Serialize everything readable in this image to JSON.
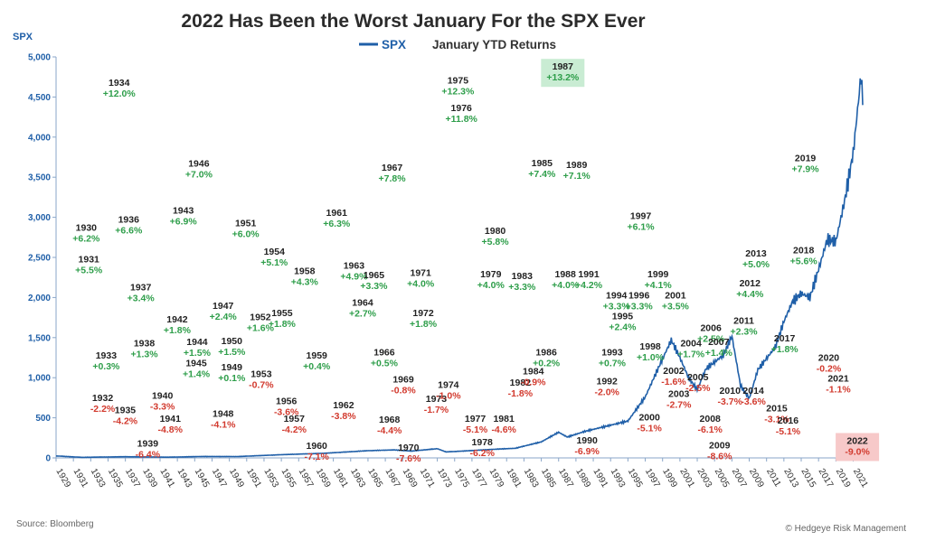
{
  "chart_data": {
    "type": "line",
    "title": "2022 Has Been the Worst January For the SPX Ever",
    "ylabel": "SPX",
    "legend": [
      {
        "name": "SPX",
        "color": "#1f5fa8",
        "kind": "line"
      },
      {
        "name": "January YTD Returns",
        "kind": "text"
      }
    ],
    "legend_position": "top-center",
    "ylim": [
      0,
      5000
    ],
    "yticks": [
      0,
      500,
      1000,
      1500,
      2000,
      2500,
      3000,
      3500,
      4000,
      4500,
      5000
    ],
    "ytick_labels": [
      "0",
      "500",
      "1,000",
      "1,500",
      "2,000",
      "2,500",
      "3,000",
      "3,500",
      "4,000",
      "4,500",
      "5,000"
    ],
    "xlim": [
      1929,
      2022.2
    ],
    "xticks": [
      "1929",
      "1931",
      "1933",
      "1935",
      "1937",
      "1939",
      "1941",
      "1943",
      "1945",
      "1947",
      "1949",
      "1951",
      "1953",
      "1955",
      "1957",
      "1959",
      "1961",
      "1963",
      "1965",
      "1967",
      "1969",
      "1971",
      "1973",
      "1975",
      "1977",
      "1979",
      "1981",
      "1983",
      "1985",
      "1987",
      "1989",
      "1991",
      "1993",
      "1995",
      "1997",
      "1999",
      "2001",
      "2003",
      "2005",
      "2007",
      "2009",
      "2011",
      "2013",
      "2015",
      "2017",
      "2019",
      "2021"
    ],
    "grid": false,
    "series": [
      {
        "name": "SPX",
        "color": "#1f5fa8",
        "x": [
          1929,
          1932,
          1937,
          1942,
          1946,
          1950,
          1955,
          1960,
          1965,
          1968,
          1970,
          1973,
          1974,
          1975,
          1980,
          1982,
          1985,
          1987,
          1988,
          1990,
          1995,
          1997,
          1998,
          2000,
          2001,
          2002,
          2003,
          2004,
          2006,
          2007,
          2008,
          2009,
          2010,
          2012,
          2013,
          2014,
          2015,
          2016,
          2017,
          2018,
          2019,
          2020,
          2021,
          2021.9,
          2022.1
        ],
        "y": [
          25,
          7,
          15,
          9,
          18,
          17,
          40,
          58,
          90,
          100,
          85,
          115,
          75,
          80,
          110,
          120,
          200,
          320,
          260,
          330,
          460,
          760,
          1000,
          1470,
          1250,
          1000,
          850,
          1110,
          1280,
          1520,
          900,
          740,
          1100,
          1380,
          1700,
          1950,
          2050,
          2000,
          2350,
          2720,
          2700,
          3200,
          3800,
          4770,
          4400
        ]
      }
    ],
    "annotations": [
      {
        "year": "1930",
        "value": "+6.2%",
        "x": 1930.6,
        "y": 2835
      },
      {
        "year": "1931",
        "value": "+5.5%",
        "x": 1930.9,
        "y": 2440
      },
      {
        "year": "1932",
        "value": "-2.2%",
        "x": 1932.5,
        "y": 710
      },
      {
        "year": "1933",
        "value": "+0.3%",
        "x": 1932.9,
        "y": 1240
      },
      {
        "year": "1934",
        "value": "+12.0%",
        "x": 1934.4,
        "y": 4640
      },
      {
        "year": "1935",
        "value": "-4.2%",
        "x": 1935.1,
        "y": 560
      },
      {
        "year": "1936",
        "value": "+6.6%",
        "x": 1935.5,
        "y": 2935
      },
      {
        "year": "1937",
        "value": "+3.4%",
        "x": 1936.9,
        "y": 2090
      },
      {
        "year": "1938",
        "value": "+1.3%",
        "x": 1937.3,
        "y": 1390
      },
      {
        "year": "1939",
        "value": "-6.4%",
        "x": 1937.7,
        "y": 140
      },
      {
        "year": "1940",
        "value": "-3.3%",
        "x": 1939.4,
        "y": 740
      },
      {
        "year": "1941",
        "value": "-4.8%",
        "x": 1940.3,
        "y": 450
      },
      {
        "year": "1942",
        "value": "+1.8%",
        "x": 1941.1,
        "y": 1690
      },
      {
        "year": "1943",
        "value": "+6.9%",
        "x": 1941.8,
        "y": 3045
      },
      {
        "year": "1944",
        "value": "+1.5%",
        "x": 1943.4,
        "y": 1410
      },
      {
        "year": "1945",
        "value": "+1.4%",
        "x": 1943.3,
        "y": 1145
      },
      {
        "year": "1946",
        "value": "+7.0%",
        "x": 1943.6,
        "y": 3630
      },
      {
        "year": "1947",
        "value": "+2.4%",
        "x": 1946.4,
        "y": 1860
      },
      {
        "year": "1948",
        "value": "-4.1%",
        "x": 1946.4,
        "y": 510
      },
      {
        "year": "1949",
        "value": "+0.1%",
        "x": 1947.4,
        "y": 1090
      },
      {
        "year": "1950",
        "value": "+1.5%",
        "x": 1947.4,
        "y": 1420
      },
      {
        "year": "1951",
        "value": "+6.0%",
        "x": 1949.0,
        "y": 2890
      },
      {
        "year": "1952",
        "value": "+1.6%",
        "x": 1950.7,
        "y": 1720
      },
      {
        "year": "1953",
        "value": "-0.7%",
        "x": 1950.8,
        "y": 1010
      },
      {
        "year": "1954",
        "value": "+5.1%",
        "x": 1952.3,
        "y": 2535
      },
      {
        "year": "1955",
        "value": "+1.8%",
        "x": 1953.2,
        "y": 1770
      },
      {
        "year": "1956",
        "value": "-3.6%",
        "x": 1953.7,
        "y": 670
      },
      {
        "year": "1957",
        "value": "-4.2%",
        "x": 1954.6,
        "y": 450
      },
      {
        "year": "1958",
        "value": "+4.3%",
        "x": 1955.8,
        "y": 2290
      },
      {
        "year": "1959",
        "value": "+0.4%",
        "x": 1957.2,
        "y": 1240
      },
      {
        "year": "1960",
        "value": "-7.1%",
        "x": 1957.2,
        "y": 110
      },
      {
        "year": "1961",
        "value": "+6.3%",
        "x": 1959.5,
        "y": 3020
      },
      {
        "year": "1962",
        "value": "-3.8%",
        "x": 1960.3,
        "y": 620
      },
      {
        "year": "1963",
        "value": "+4.9%",
        "x": 1961.5,
        "y": 2360
      },
      {
        "year": "1964",
        "value": "+2.7%",
        "x": 1962.5,
        "y": 1900
      },
      {
        "year": "1965",
        "value": "+3.3%",
        "x": 1963.8,
        "y": 2240
      },
      {
        "year": "1966",
        "value": "+0.5%",
        "x": 1965.0,
        "y": 1280
      },
      {
        "year": "1967",
        "value": "+7.8%",
        "x": 1965.9,
        "y": 3580
      },
      {
        "year": "1968",
        "value": "-4.4%",
        "x": 1965.6,
        "y": 440
      },
      {
        "year": "1969",
        "value": "-0.8%",
        "x": 1967.2,
        "y": 940
      },
      {
        "year": "1970",
        "value": "-7.6%",
        "x": 1967.8,
        "y": 90
      },
      {
        "year": "1971",
        "value": "+4.0%",
        "x": 1969.2,
        "y": 2270
      },
      {
        "year": "1972",
        "value": "+1.8%",
        "x": 1969.5,
        "y": 1770
      },
      {
        "year": "1973",
        "value": "-1.7%",
        "x": 1971.0,
        "y": 700
      },
      {
        "year": "1974",
        "value": "-1.0%",
        "x": 1972.4,
        "y": 870
      },
      {
        "year": "1975",
        "value": "+12.3%",
        "x": 1973.5,
        "y": 4665
      },
      {
        "year": "1976",
        "value": "+11.8%",
        "x": 1973.9,
        "y": 4325
      },
      {
        "year": "1977",
        "value": "-5.1%",
        "x": 1975.5,
        "y": 450
      },
      {
        "year": "1978",
        "value": "-6.2%",
        "x": 1976.3,
        "y": 160
      },
      {
        "year": "1979",
        "value": "+4.0%",
        "x": 1977.3,
        "y": 2250
      },
      {
        "year": "1980",
        "value": "+5.8%",
        "x": 1977.8,
        "y": 2790
      },
      {
        "year": "1981",
        "value": "-4.6%",
        "x": 1978.8,
        "y": 450
      },
      {
        "year": "1982",
        "value": "-1.8%",
        "x": 1980.7,
        "y": 900
      },
      {
        "year": "1983",
        "value": "+3.3%",
        "x": 1980.9,
        "y": 2230
      },
      {
        "year": "1984",
        "value": "-0.9%",
        "x": 1982.2,
        "y": 1040
      },
      {
        "year": "1985",
        "value": "+7.4%",
        "x": 1983.2,
        "y": 3635
      },
      {
        "year": "1986",
        "value": "+0.2%",
        "x": 1983.7,
        "y": 1280
      },
      {
        "year": "1987",
        "value": "+13.2%",
        "x": 1985.6,
        "y": 4840
      },
      {
        "year": "1988",
        "value": "+4.0%",
        "x": 1985.9,
        "y": 2250
      },
      {
        "year": "1989",
        "value": "+7.1%",
        "x": 1987.2,
        "y": 3615
      },
      {
        "year": "1990",
        "value": "-6.9%",
        "x": 1988.4,
        "y": 180
      },
      {
        "year": "1991",
        "value": "+4.2%",
        "x": 1988.6,
        "y": 2250
      },
      {
        "year": "1992",
        "value": "-2.0%",
        "x": 1990.7,
        "y": 920
      },
      {
        "year": "1993",
        "value": "+0.7%",
        "x": 1991.3,
        "y": 1280
      },
      {
        "year": "1994",
        "value": "+3.3%",
        "x": 1991.8,
        "y": 1990
      },
      {
        "year": "1995",
        "value": "+2.4%",
        "x": 1992.5,
        "y": 1730
      },
      {
        "year": "1996",
        "value": "+3.3%",
        "x": 1994.4,
        "y": 1990
      },
      {
        "year": "1997",
        "value": "+6.1%",
        "x": 1994.6,
        "y": 2980
      },
      {
        "year": "1998",
        "value": "+1.0%",
        "x": 1995.7,
        "y": 1350
      },
      {
        "year": "1999",
        "value": "+4.1%",
        "x": 1996.6,
        "y": 2250
      },
      {
        "year": "2000",
        "value": "-5.1%",
        "x": 1995.6,
        "y": 470
      },
      {
        "year": "2001",
        "value": "+3.5%",
        "x": 1998.6,
        "y": 1990
      },
      {
        "year": "2002",
        "value": "-1.6%",
        "x": 1998.4,
        "y": 1050
      },
      {
        "year": "2003",
        "value": "-2.7%",
        "x": 1999.0,
        "y": 760
      },
      {
        "year": "2004",
        "value": "+1.7%",
        "x": 2000.4,
        "y": 1390
      },
      {
        "year": "2005",
        "value": "-2.5%",
        "x": 2001.2,
        "y": 970
      },
      {
        "year": "2006",
        "value": "+2.5%",
        "x": 2002.7,
        "y": 1580
      },
      {
        "year": "2007",
        "value": "+1.4%",
        "x": 2003.6,
        "y": 1410
      },
      {
        "year": "2008",
        "value": "-6.1%",
        "x": 2002.6,
        "y": 450
      },
      {
        "year": "2009",
        "value": "-8.6%",
        "x": 2003.7,
        "y": 120
      },
      {
        "year": "2010",
        "value": "-3.7%",
        "x": 2004.9,
        "y": 800
      },
      {
        "year": "2011",
        "value": "+2.3%",
        "x": 2006.5,
        "y": 1670
      },
      {
        "year": "2012",
        "value": "+4.4%",
        "x": 2007.2,
        "y": 2140
      },
      {
        "year": "2013",
        "value": "+5.0%",
        "x": 2007.9,
        "y": 2510
      },
      {
        "year": "2014",
        "value": "-3.6%",
        "x": 2007.6,
        "y": 800
      },
      {
        "year": "2015",
        "value": "-3.1%",
        "x": 2010.3,
        "y": 580
      },
      {
        "year": "2016",
        "value": "-5.1%",
        "x": 2011.6,
        "y": 430
      },
      {
        "year": "2017",
        "value": "+1.8%",
        "x": 2011.2,
        "y": 1450
      },
      {
        "year": "2018",
        "value": "+5.6%",
        "x": 2013.4,
        "y": 2550
      },
      {
        "year": "2019",
        "value": "+7.9%",
        "x": 2013.6,
        "y": 3700
      },
      {
        "year": "2020",
        "value": "-0.2%",
        "x": 2016.3,
        "y": 1210
      },
      {
        "year": "2021",
        "value": "-1.1%",
        "x": 2017.4,
        "y": 950
      }
    ],
    "highlights": [
      {
        "year": "1987",
        "value": "+13.2%",
        "x": 1985.6,
        "y": 4840,
        "box_color": "#c9ecd3"
      },
      {
        "year": "2022",
        "value": "-9.0%",
        "x": 2019.6,
        "y": 175,
        "box_color": "#f7c9c9"
      }
    ]
  },
  "footer": {
    "source": "Source: Bloomberg",
    "credit": "© Hedgeye Risk Management"
  },
  "colors": {
    "positive": "#2e9e4a",
    "negative": "#d23a2e",
    "line": "#1f5fa8",
    "axis": "#1f5fa8"
  }
}
